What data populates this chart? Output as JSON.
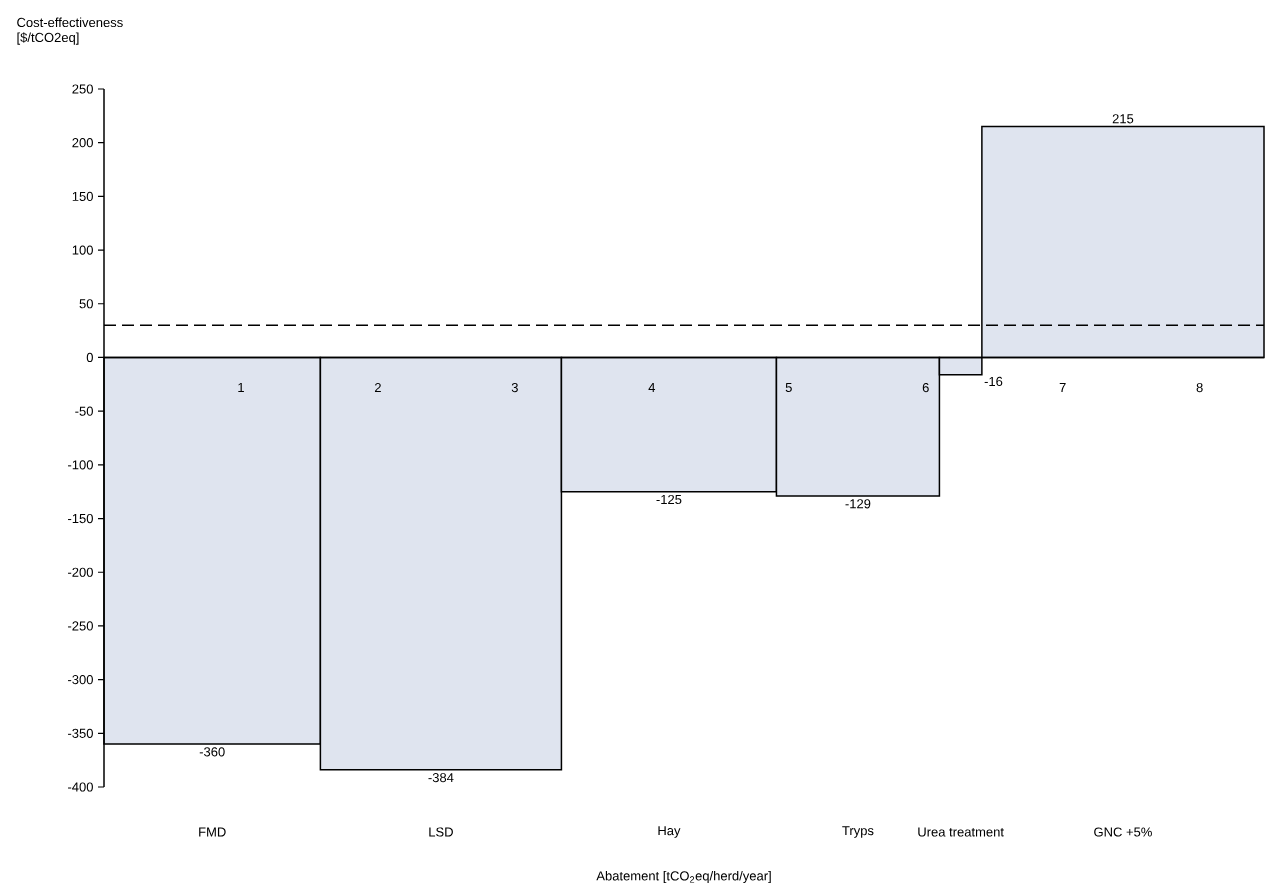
{
  "chart_data": {
    "type": "histogram",
    "ylabel": "Cost-effectiveness [$/tCO2eq]",
    "annotations": [
      "Abatement [tCO$_{2}$eq/herd/year]"
    ],
    "categories": [
      "FMD",
      "LSD",
      "Hay",
      "Tryps",
      "Urea treatment",
      "GNC +5%"
    ],
    "bins": [
      0,
      1.58,
      3.34,
      4.91,
      6.1,
      6.41,
      8.47
    ],
    "values": [
      -360,
      -384,
      -125,
      -129,
      -16,
      215
    ],
    "color": "#dfe4ef",
    "data_labels": true,
    "xlim": [
      0,
      8.47
    ],
    "xticks": [
      1,
      2,
      3,
      4,
      5,
      6,
      7,
      8
    ],
    "ylim": [
      -400,
      250
    ],
    "yticks": [
      -400,
      -350,
      -300,
      -250,
      -200,
      -150,
      -100,
      -50,
      0,
      50,
      100,
      150,
      200,
      250
    ],
    "ref_lines": [
      {
        "axis": "y",
        "value": 30,
        "line_style": "dashed",
        "color": "#000000"
      }
    ]
  }
}
